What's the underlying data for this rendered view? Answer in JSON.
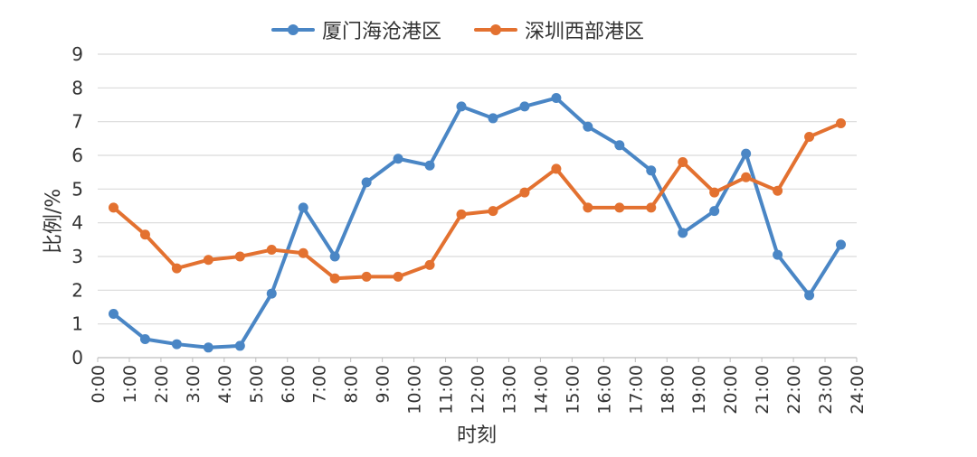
{
  "chart_data": {
    "type": "line",
    "xlabel": "时刻",
    "ylabel": "比例/%",
    "ylim": [
      0,
      9
    ],
    "yticks": [
      "0",
      "1",
      "2",
      "3",
      "4",
      "5",
      "6",
      "7",
      "8",
      "9"
    ],
    "xticks": [
      "0:00",
      "1:00",
      "2:00",
      "3:00",
      "4:00",
      "5:00",
      "6:00",
      "7:00",
      "8:00",
      "9:00",
      "10:00",
      "11:00",
      "12:00",
      "13:00",
      "14:00",
      "15:00",
      "16:00",
      "17:00",
      "18:00",
      "19:00",
      "20:00",
      "21:00",
      "22:00",
      "23:00",
      "24:00"
    ],
    "x": [
      0.5,
      1.5,
      2.5,
      3.5,
      4.5,
      5.5,
      6.5,
      7.5,
      8.5,
      9.5,
      10.5,
      11.5,
      12.5,
      13.5,
      14.5,
      15.5,
      16.5,
      17.5,
      18.5,
      19.5,
      20.5,
      21.5,
      22.5,
      23.5
    ],
    "grid": true,
    "legend_position": "top",
    "series": [
      {
        "name": "厦门海沧港区",
        "color": "#4a86c5",
        "values": [
          1.3,
          0.55,
          0.4,
          0.3,
          0.35,
          1.9,
          4.45,
          3.0,
          5.2,
          5.9,
          5.7,
          7.45,
          7.1,
          7.45,
          7.7,
          6.85,
          6.3,
          5.55,
          3.7,
          4.35,
          6.05,
          3.05,
          1.85,
          3.35
        ]
      },
      {
        "name": "深圳西部港区",
        "color": "#e37130",
        "values": [
          4.45,
          3.65,
          2.65,
          2.9,
          3.0,
          3.2,
          3.1,
          2.35,
          2.4,
          2.4,
          2.75,
          4.25,
          4.35,
          4.9,
          5.6,
          4.45,
          4.45,
          4.45,
          5.8,
          4.9,
          5.35,
          4.95,
          6.55,
          6.95
        ]
      }
    ]
  }
}
